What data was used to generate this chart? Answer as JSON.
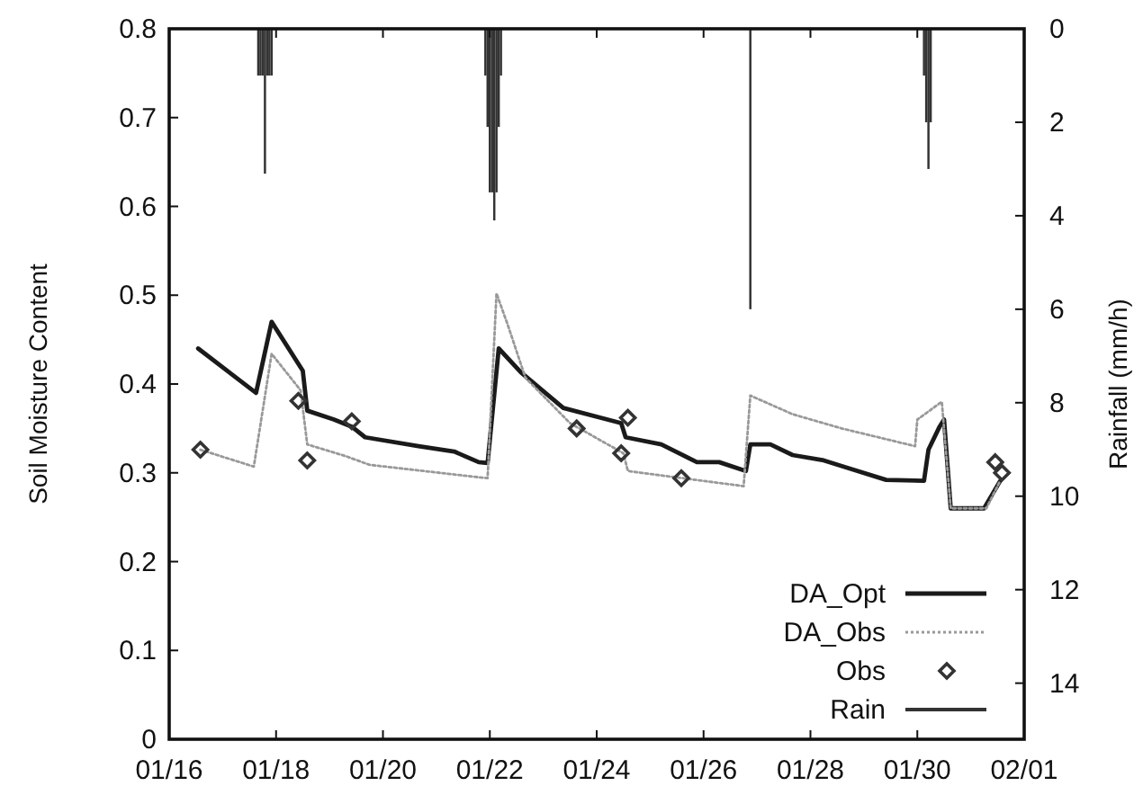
{
  "chart_data": {
    "type": "line",
    "ylabel": "Soil Moisture Content",
    "y2label": "Rainfall (mm/h)",
    "xlim": [
      "--01-16",
      "--02-01"
    ],
    "xticks": [
      {
        "value": "--01-16",
        "label": "01/16"
      },
      {
        "value": "--01-18",
        "label": "01/18"
      },
      {
        "value": "--01-20",
        "label": "01/20"
      },
      {
        "value": "--01-22",
        "label": "01/22"
      },
      {
        "value": "--01-24",
        "label": "01/24"
      },
      {
        "value": "--01-26",
        "label": "01/26"
      },
      {
        "value": "--01-28",
        "label": "01/28"
      },
      {
        "value": "--01-30",
        "label": "01/30"
      },
      {
        "value": "--02-01",
        "label": "02/01"
      }
    ],
    "ylim": [
      0,
      0.8
    ],
    "yticks": [
      0,
      0.1,
      0.2,
      0.3,
      0.4,
      0.5,
      0.6,
      0.7,
      0.8
    ],
    "y2lim": [
      15.2,
      0
    ],
    "y2ticks": [
      0,
      2,
      4,
      6,
      8,
      10,
      12,
      14
    ],
    "grid": false,
    "legend": "bottom right",
    "series": [
      {
        "name": "DA_Opt",
        "color": "#1a1a1a",
        "line_style": "solid",
        "x": [
          "--01-16T13:00",
          "--01-17T15:00",
          "--01-17T22:00",
          "--01-18T12:00",
          "--01-18T14:00",
          "--01-19T02:00",
          "--01-19T10:00",
          "--01-19T16:00",
          "--01-20T16:00",
          "--01-21T08:00",
          "--01-21T19:00",
          "--01-21T23:00",
          "--01-22T04:00",
          "--01-22T14:00",
          "--01-23T09:00",
          "--01-24T11:00",
          "--01-24T13:00",
          "--01-25T05:00",
          "--01-25T21:00",
          "--01-26T07:00",
          "--01-26T19:00",
          "--01-26T21:00",
          "--01-27T06:00",
          "--01-27T16:00",
          "--01-28T06:00",
          "--01-28T16:00",
          "--01-29T10:00",
          "--01-30T03:00",
          "--01-30T05:00",
          "--01-30T10:00",
          "--01-30T12:00",
          "--01-30T15:00",
          "--01-31T06:00",
          "--01-31T13:00"
        ],
        "values": [
          0.44,
          0.39,
          0.47,
          0.415,
          0.37,
          0.36,
          0.352,
          0.34,
          0.33,
          0.324,
          0.312,
          0.311,
          0.44,
          0.413,
          0.373,
          0.356,
          0.34,
          0.332,
          0.312,
          0.312,
          0.302,
          0.332,
          0.332,
          0.32,
          0.314,
          0.306,
          0.292,
          0.291,
          0.326,
          0.352,
          0.36,
          0.26,
          0.26,
          0.29
        ]
      },
      {
        "name": "DA_Obs",
        "color": "#999999",
        "line_style": "dotted",
        "x": [
          "--01-16T14:00",
          "--01-17T14:00",
          "--01-17T22:00",
          "--01-18T11:00",
          "--01-18T14:00",
          "--01-19T07:00",
          "--01-19T18:00",
          "--01-21T19:00",
          "--01-21T23:00",
          "--01-22T03:00",
          "--01-22T08:00",
          "--01-22T16:00",
          "--01-23T12:00",
          "--01-24T12:00",
          "--01-24T14:00",
          "--01-26T18:00",
          "--01-26T21:00",
          "--01-27T16:00",
          "--01-28T14:00",
          "--01-29T23:00",
          "--01-30T00:00",
          "--01-30T11:00",
          "--01-30T15:00",
          "--01-31T07:00",
          "--01-31T13:00"
        ],
        "values": [
          0.326,
          0.307,
          0.434,
          0.393,
          0.332,
          0.319,
          0.309,
          0.295,
          0.294,
          0.502,
          0.467,
          0.407,
          0.356,
          0.322,
          0.302,
          0.285,
          0.387,
          0.366,
          0.35,
          0.33,
          0.36,
          0.38,
          0.26,
          0.26,
          0.29
        ]
      },
      {
        "name": "Obs",
        "type": "scatter",
        "color": "#333333",
        "marker": "diamond",
        "x": [
          "--01-16T14:00",
          "--01-18T10:00",
          "--01-18T14:00",
          "--01-19T10:00",
          "--01-23T15:00",
          "--01-24T11:00",
          "--01-24T14:00",
          "--01-25T14:00",
          "--01-31T11:00",
          "--01-31T14:00"
        ],
        "values": [
          0.326,
          0.381,
          0.314,
          0.358,
          0.35,
          0.322,
          0.362,
          0.294,
          0.312,
          0.3
        ]
      },
      {
        "name": "Rain",
        "type": "bar",
        "axis": "y2",
        "color": "#333333",
        "x": [
          "--01-17T16:00",
          "--01-17T17:00",
          "--01-17T18:00",
          "--01-17T19:00",
          "--01-17T20:00",
          "--01-17T21:00",
          "--01-17T22:00",
          "--01-21T22:00",
          "--01-21T23:00",
          "--01-22T00:00",
          "--01-22T01:00",
          "--01-22T02:00",
          "--01-22T03:00",
          "--01-22T04:00",
          "--01-22T05:00",
          "--01-26T21:00",
          "--01-30T03:00",
          "--01-30T04:00",
          "--01-30T05:00",
          "--01-30T06:00"
        ],
        "values": [
          1.0,
          1.0,
          1.0,
          3.1,
          1.0,
          1.0,
          1.0,
          1.0,
          2.1,
          3.5,
          3.5,
          4.1,
          3.5,
          2.1,
          1.0,
          6.0,
          1.0,
          2.0,
          3.0,
          2.0
        ]
      }
    ]
  }
}
